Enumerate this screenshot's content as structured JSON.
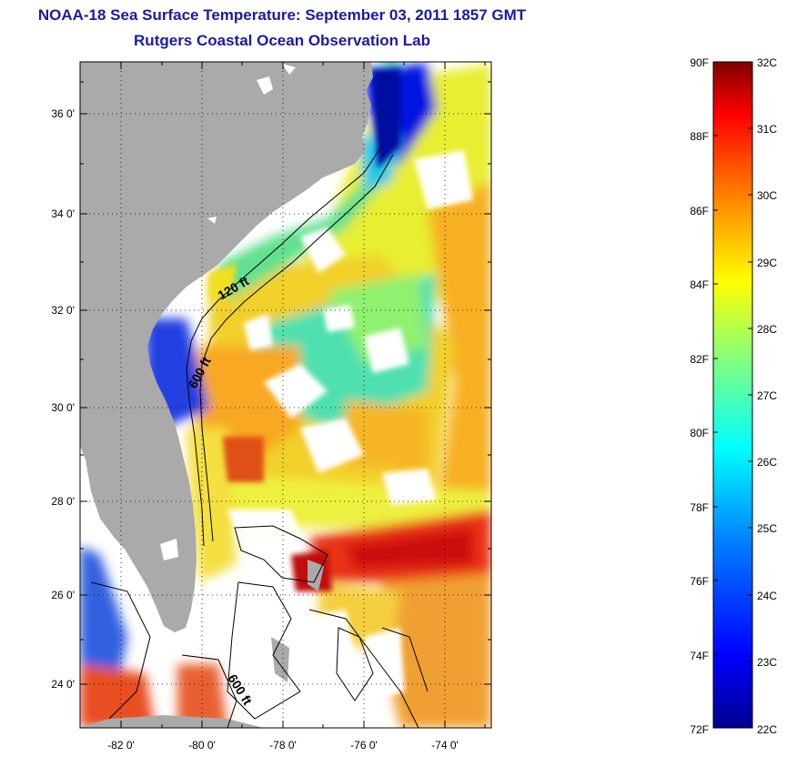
{
  "title": {
    "line1": "NOAA-18 Sea Surface Temperature:  September 03, 2011 1857 GMT",
    "line2": "Rutgers Coastal Ocean Observation Lab"
  },
  "map": {
    "lat_ticks": [
      "24 0'",
      "26 0'",
      "28 0'",
      "30 0'",
      "32 0'",
      "34 0'",
      "36 0'"
    ],
    "lon_ticks": [
      "-82 0'",
      "-80 0'",
      "-78 0'",
      "-76 0'",
      "-74 0'"
    ],
    "contour_labels": [
      "120 ft",
      "600 ft",
      "600 ft"
    ],
    "land_color": "#aaaaaa",
    "missing_color": "#ffffff"
  },
  "colorbar": {
    "fahrenheit_labels": [
      "90F",
      "88F",
      "86F",
      "84F",
      "82F",
      "80F",
      "78F",
      "76F",
      "74F",
      "72F"
    ],
    "celsius_labels": [
      "32C",
      "31C",
      "30C",
      "29C",
      "28C",
      "27C",
      "26C",
      "25C",
      "24C",
      "23C",
      "22C"
    ],
    "range_c": [
      22,
      32
    ],
    "range_f": [
      72,
      90
    ],
    "colors": [
      "#00008f",
      "#0000ff",
      "#0080ff",
      "#00ffff",
      "#80ff80",
      "#ffff00",
      "#ff8000",
      "#ff0000",
      "#800000"
    ]
  }
}
